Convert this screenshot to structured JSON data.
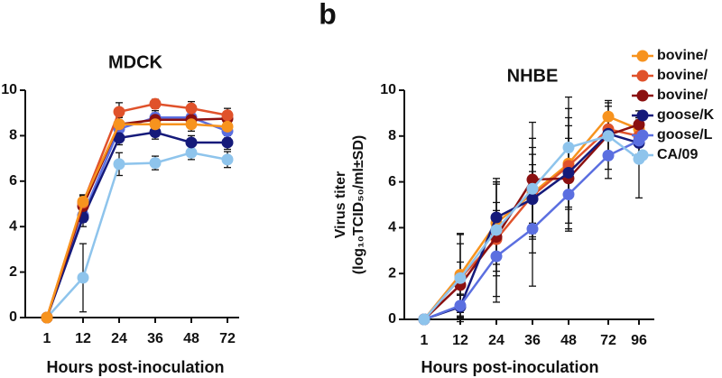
{
  "chart_data": [
    {
      "type": "line",
      "title": "MDCK",
      "x_label": "Hours post-inoculation",
      "categories": [
        "1",
        "12",
        "24",
        "36",
        "48",
        "72"
      ],
      "ylim": [
        0,
        10
      ],
      "yticks": [
        0,
        2,
        4,
        6,
        8,
        10
      ],
      "series": [
        {
          "color": "#8ec4ec",
          "values": [
            0,
            1.75,
            6.75,
            6.8,
            7.25,
            6.95
          ],
          "errors": [
            0,
            1.5,
            0.5,
            0.3,
            0.3,
            0.35
          ]
        },
        {
          "color": "#5b6fe0",
          "values": [
            0,
            4.5,
            8.3,
            8.8,
            8.8,
            8.2
          ],
          "errors": [
            0,
            0.3,
            0.3,
            0.3,
            0.3,
            0.3
          ]
        },
        {
          "color": "#151a7a",
          "values": [
            0,
            4.4,
            7.9,
            8.15,
            7.7,
            7.7
          ],
          "errors": [
            0,
            0.4,
            0.3,
            0.3,
            0.3,
            0.3
          ]
        },
        {
          "color": "#8b1010",
          "values": [
            0,
            4.9,
            8.5,
            8.7,
            8.7,
            8.75
          ],
          "errors": [
            0,
            0.3,
            0.3,
            0.3,
            0.3,
            0.3
          ]
        },
        {
          "color": "#e0522b",
          "values": [
            0,
            5.05,
            9.05,
            9.4,
            9.2,
            8.9
          ],
          "errors": [
            0,
            0.3,
            0.4,
            0.2,
            0.3,
            0.3
          ]
        },
        {
          "color": "#f7931e",
          "values": [
            0,
            5.1,
            8.5,
            8.5,
            8.5,
            8.4
          ],
          "errors": [
            0,
            0.3,
            0.3,
            0.3,
            0.3,
            0.3
          ]
        }
      ]
    },
    {
      "type": "line",
      "panel": "b",
      "title": "NHBE",
      "x_label": "Hours post-inoculation",
      "y_label": [
        "Virus titer",
        "(log₁₀TCID₅₀/ml±SD)"
      ],
      "categories": [
        "1",
        "12",
        "24",
        "36",
        "48",
        "72",
        "96"
      ],
      "ylim": [
        0,
        10
      ],
      "yticks": [
        0,
        2,
        4,
        6,
        8,
        10
      ],
      "legend": "right",
      "series": [
        {
          "name": "bovine/",
          "color": "#f7931e",
          "values": [
            0,
            1.95,
            4.2,
            5.5,
            6.8,
            8.85,
            8.3
          ],
          "errors": [
            0,
            1.8,
            1.8,
            2.0,
            2.0,
            0.6,
            0.5
          ]
        },
        {
          "name": "bovine/",
          "color": "#e0522b",
          "values": [
            0,
            1.8,
            3.5,
            5.4,
            6.7,
            8.3,
            8.0
          ],
          "errors": [
            0,
            1.5,
            2.5,
            2.5,
            2.5,
            1.0,
            0.8
          ]
        },
        {
          "name": "bovine/",
          "color": "#8b1010",
          "values": [
            0,
            1.5,
            3.6,
            6.1,
            6.15,
            8.05,
            8.5
          ],
          "errors": [
            0,
            1.0,
            1.5,
            2.5,
            2.3,
            1.5,
            0.6
          ]
        },
        {
          "name": "goose/K",
          "color": "#151a7a",
          "values": [
            0,
            0.55,
            4.45,
            5.25,
            6.4,
            8.1,
            7.7
          ],
          "errors": [
            0,
            0.5,
            1.7,
            1.5,
            1.5,
            0.8,
            0.6
          ]
        },
        {
          "name": "goose/L",
          "color": "#5b6fe0",
          "values": [
            0,
            0.6,
            2.75,
            3.95,
            5.45,
            7.15,
            7.8
          ],
          "errors": [
            0,
            0.5,
            2.0,
            2.5,
            1.5,
            1.0,
            0.6
          ]
        },
        {
          "name": "CA/09",
          "color": "#8ec4ec",
          "values": [
            0,
            1.8,
            3.9,
            5.7,
            7.5,
            8.0,
            7.0
          ],
          "errors": [
            0,
            1.9,
            2.0,
            1.5,
            2.2,
            0.7,
            1.7
          ]
        }
      ]
    }
  ]
}
